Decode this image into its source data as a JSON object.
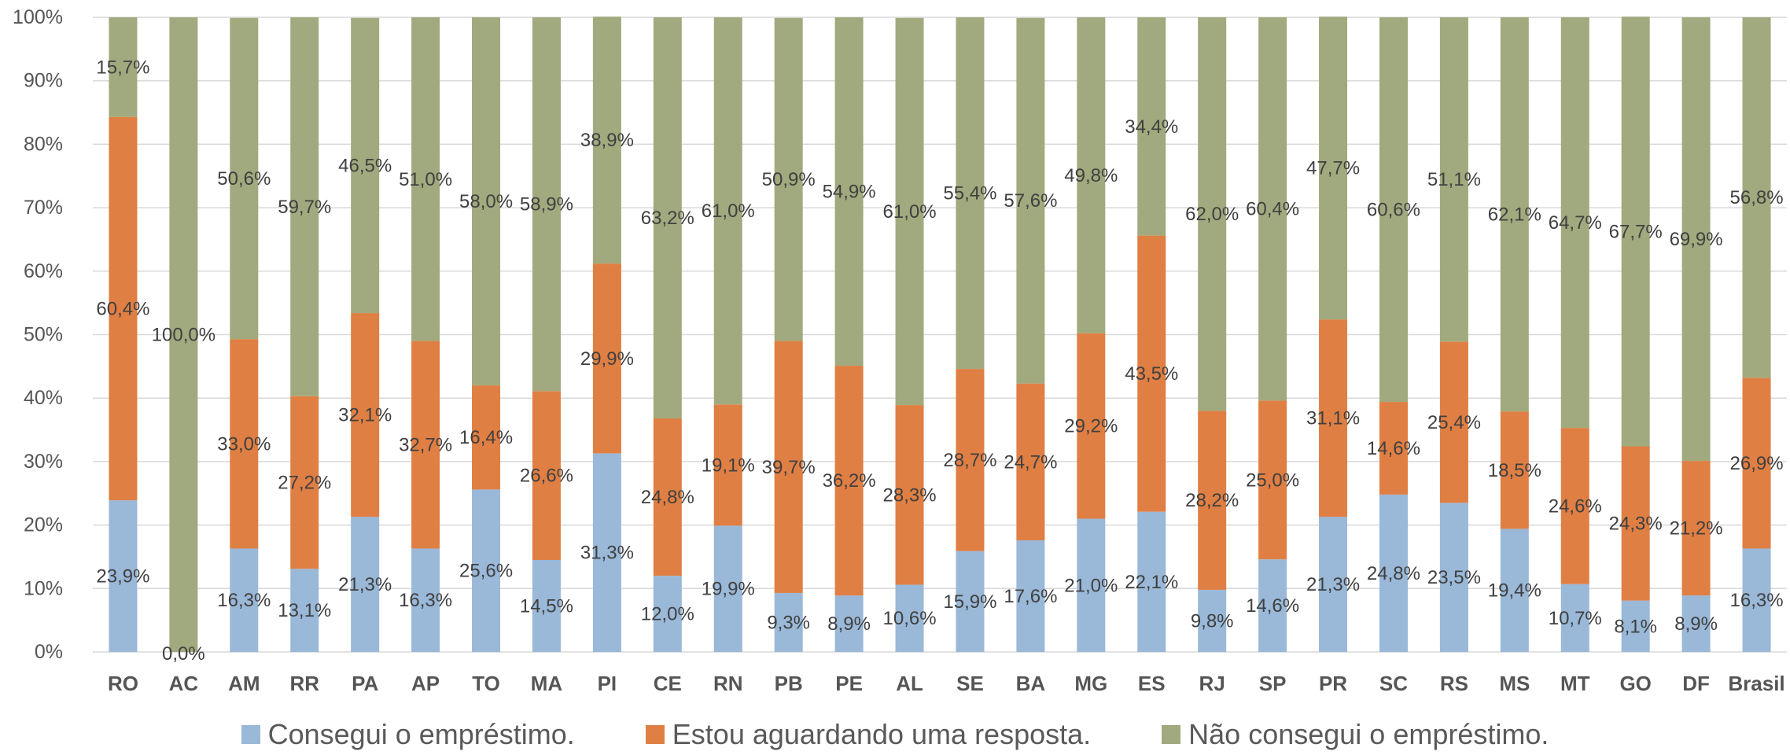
{
  "chart_data": {
    "type": "bar",
    "stacked": true,
    "categories": [
      "RO",
      "AC",
      "AM",
      "RR",
      "PA",
      "AP",
      "TO",
      "MA",
      "PI",
      "CE",
      "RN",
      "PB",
      "PE",
      "AL",
      "SE",
      "BA",
      "MG",
      "ES",
      "RJ",
      "SP",
      "PR",
      "SC",
      "RS",
      "MS",
      "MT",
      "GO",
      "DF",
      "Brasil"
    ],
    "series": [
      {
        "name": "Consegui o empréstimo.",
        "color": "#9ab8d8",
        "values": [
          23.9,
          0.0,
          16.3,
          13.1,
          21.3,
          16.3,
          25.6,
          14.5,
          31.3,
          12.0,
          19.9,
          9.3,
          8.9,
          10.6,
          15.9,
          17.6,
          21.0,
          22.1,
          9.8,
          14.6,
          21.3,
          24.8,
          23.5,
          19.4,
          10.7,
          8.1,
          8.9,
          16.3
        ],
        "labels": [
          "23,9%",
          "0,0%",
          "16,3%",
          "13,1%",
          "21,3%",
          "16,3%",
          "25,6%",
          "14,5%",
          "31,3%",
          "12,0%",
          "19,9%",
          "9,3%",
          "8,9%",
          "10,6%",
          "15,9%",
          "17,6%",
          "21,0%",
          "22,1%",
          "9,8%",
          "14,6%",
          "21,3%",
          "24,8%",
          "23,5%",
          "19,4%",
          "10,7%",
          "8,1%",
          "8,9%",
          "16,3%"
        ]
      },
      {
        "name": "Estou aguardando uma resposta.",
        "color": "#e07f43",
        "values": [
          60.4,
          0.0,
          33.0,
          27.2,
          32.1,
          32.7,
          16.4,
          26.6,
          29.9,
          24.8,
          19.1,
          39.7,
          36.2,
          28.3,
          28.7,
          24.7,
          29.2,
          43.5,
          28.2,
          25.0,
          31.1,
          14.6,
          25.4,
          18.5,
          24.6,
          24.3,
          21.2,
          26.9
        ],
        "labels": [
          "60,4%",
          "",
          "33,0%",
          "27,2%",
          "32,1%",
          "32,7%",
          "16,4%",
          "26,6%",
          "29,9%",
          "24,8%",
          "19,1%",
          "39,7%",
          "36,2%",
          "28,3%",
          "28,7%",
          "24,7%",
          "29,2%",
          "43,5%",
          "28,2%",
          "25,0%",
          "31,1%",
          "14,6%",
          "25,4%",
          "18,5%",
          "24,6%",
          "24,3%",
          "21,2%",
          "26,9%"
        ]
      },
      {
        "name": "Não consegui o empréstimo.",
        "color": "#a1aa7e",
        "values": [
          15.7,
          100.0,
          50.6,
          59.7,
          46.5,
          51.0,
          58.0,
          58.9,
          38.9,
          63.2,
          61.0,
          50.9,
          54.9,
          61.0,
          55.4,
          57.6,
          49.8,
          34.4,
          62.0,
          60.4,
          47.7,
          60.6,
          51.1,
          62.1,
          64.7,
          67.7,
          69.9,
          56.8
        ],
        "labels": [
          "15,7%",
          "100,0%",
          "50,6%",
          "59,7%",
          "46,5%",
          "51,0%",
          "58,0%",
          "58,9%",
          "38,9%",
          "63,2%",
          "61,0%",
          "50,9%",
          "54,9%",
          "61,0%",
          "55,4%",
          "57,6%",
          "49,8%",
          "34,4%",
          "62,0%",
          "60,4%",
          "47,7%",
          "60,6%",
          "51,1%",
          "62,1%",
          "64,7%",
          "67,7%",
          "69,9%",
          "56,8%"
        ]
      }
    ],
    "y_ticks": [
      "0%",
      "10%",
      "20%",
      "30%",
      "40%",
      "50%",
      "60%",
      "70%",
      "80%",
      "90%",
      "100%"
    ],
    "ylim": [
      0,
      100
    ],
    "grid": true,
    "legend_position": "bottom",
    "title": "",
    "xlabel": "",
    "ylabel": ""
  }
}
